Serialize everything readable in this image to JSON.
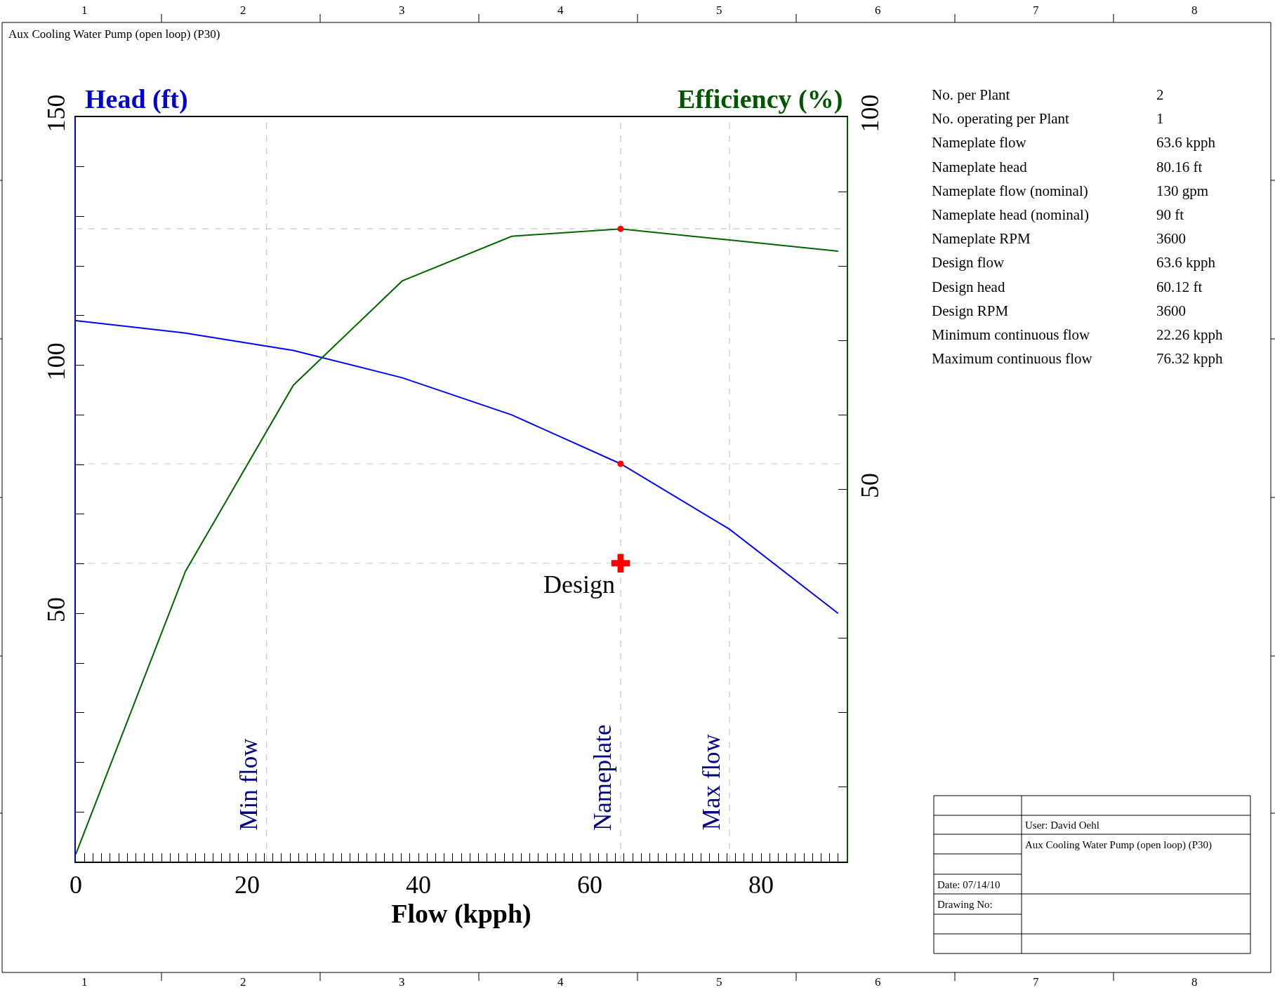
{
  "chart_data": {
    "type": "line",
    "title": "Aux Cooling Water Pump (open loop) (P30)",
    "xlabel": "Flow (kpph)",
    "ylabel": "Head (ft)",
    "y2label": "Efficiency (%)",
    "xlim": [
      0,
      90
    ],
    "ylim": [
      0,
      150
    ],
    "y2lim": [
      0,
      100
    ],
    "xticks": [
      0,
      {
        "value": 1,
        "label": null
      },
      {
        "value": 2,
        "label": null
      },
      {
        "value": 3,
        "label": null
      },
      {
        "value": 4,
        "label": null
      },
      {
        "value": 5,
        "label": null
      },
      {
        "value": 6,
        "label": null
      },
      {
        "value": 7,
        "label": null
      },
      {
        "value": 8,
        "label": null
      },
      {
        "value": 9,
        "label": null
      },
      {
        "value": 10,
        "label": null
      },
      {
        "value": 11,
        "label": null
      },
      {
        "value": 12,
        "label": null
      },
      {
        "value": 13,
        "label": null
      },
      {
        "value": 14,
        "label": null
      },
      {
        "value": 15,
        "label": null
      },
      {
        "value": 16,
        "label": null
      },
      {
        "value": 17,
        "label": null
      },
      {
        "value": 18,
        "label": null
      },
      {
        "value": 19,
        "label": null
      },
      20,
      {
        "value": 21,
        "label": null
      },
      {
        "value": 22,
        "label": null
      },
      {
        "value": 23,
        "label": null
      },
      {
        "value": 24,
        "label": null
      },
      {
        "value": 25,
        "label": null
      },
      {
        "value": 26,
        "label": null
      },
      {
        "value": 27,
        "label": null
      },
      {
        "value": 28,
        "label": null
      },
      {
        "value": 29,
        "label": null
      },
      {
        "value": 30,
        "label": null
      },
      {
        "value": 31,
        "label": null
      },
      {
        "value": 32,
        "label": null
      },
      {
        "value": 33,
        "label": null
      },
      {
        "value": 34,
        "label": null
      },
      {
        "value": 35,
        "label": null
      },
      {
        "value": 36,
        "label": null
      },
      {
        "value": 37,
        "label": null
      },
      {
        "value": 38,
        "label": null
      },
      {
        "value": 39,
        "label": null
      },
      40,
      {
        "value": 41,
        "label": null
      },
      {
        "value": 42,
        "label": null
      },
      {
        "value": 43,
        "label": null
      },
      {
        "value": 44,
        "label": null
      },
      {
        "value": 45,
        "label": null
      },
      {
        "value": 46,
        "label": null
      },
      {
        "value": 47,
        "label": null
      },
      {
        "value": 48,
        "label": null
      },
      {
        "value": 49,
        "label": null
      },
      {
        "value": 50,
        "label": null
      },
      {
        "value": 51,
        "label": null
      },
      {
        "value": 52,
        "label": null
      },
      {
        "value": 53,
        "label": null
      },
      {
        "value": 54,
        "label": null
      },
      {
        "value": 55,
        "label": null
      },
      {
        "value": 56,
        "label": null
      },
      {
        "value": 57,
        "label": null
      },
      {
        "value": 58,
        "label": null
      },
      {
        "value": 59,
        "label": null
      },
      60,
      {
        "value": 61,
        "label": null
      },
      {
        "value": 62,
        "label": null
      },
      {
        "value": 63,
        "label": null
      },
      {
        "value": 64,
        "label": null
      },
      {
        "value": 65,
        "label": null
      },
      {
        "value": 66,
        "label": null
      },
      {
        "value": 67,
        "label": null
      },
      {
        "value": 68,
        "label": null
      },
      {
        "value": 69,
        "label": null
      },
      {
        "value": 70,
        "label": null
      },
      {
        "value": 71,
        "label": null
      },
      {
        "value": 72,
        "label": null
      },
      {
        "value": 73,
        "label": null
      },
      {
        "value": 74,
        "label": null
      },
      {
        "value": 75,
        "label": null
      },
      {
        "value": 76,
        "label": null
      },
      {
        "value": 77,
        "label": null
      },
      {
        "value": 78,
        "label": null
      },
      {
        "value": 79,
        "label": null
      },
      80,
      {
        "value": 81,
        "label": null
      },
      {
        "value": 82,
        "label": null
      },
      {
        "value": 83,
        "label": null
      },
      {
        "value": 84,
        "label": null
      },
      {
        "value": 85,
        "label": null
      },
      {
        "value": 86,
        "label": null
      },
      {
        "value": 87,
        "label": null
      },
      {
        "value": 88,
        "label": null
      },
      {
        "value": 89,
        "label": null
      }
    ],
    "yticks": [
      {
        "value": 10,
        "label": null
      },
      {
        "value": 20,
        "label": null
      },
      {
        "value": 30,
        "label": null
      },
      {
        "value": 40,
        "label": null
      },
      50,
      {
        "value": 60,
        "label": null
      },
      {
        "value": 70,
        "label": null
      },
      {
        "value": 80,
        "label": null
      },
      {
        "value": 90,
        "label": null
      },
      100,
      {
        "value": 110,
        "label": null
      },
      {
        "value": 120,
        "label": null
      },
      {
        "value": 130,
        "label": null
      },
      {
        "value": 140,
        "label": null
      },
      150
    ],
    "y2ticks": [
      {
        "value": 10,
        "label": null
      },
      {
        "value": 20,
        "label": null
      },
      {
        "value": 30,
        "label": null
      },
      {
        "value": 40,
        "label": null
      },
      50,
      {
        "value": 60,
        "label": null
      },
      {
        "value": 70,
        "label": null
      },
      {
        "value": 80,
        "label": null
      },
      {
        "value": 90,
        "label": null
      },
      100
    ],
    "grid": false,
    "series": [
      {
        "color": "#0000ff",
        "x": [
          0,
          12.8,
          25.4,
          38.1,
          50.9,
          63.6,
          76.3,
          89
        ],
        "values": [
          109,
          106.5,
          103,
          97.5,
          90,
          80.16,
          67,
          50
        ]
      },
      {
        "axis": "y2",
        "color": "#006400",
        "x": [
          0,
          12.8,
          25.4,
          38.1,
          50.9,
          63.6,
          76.3,
          89
        ],
        "values": [
          1,
          39,
          64,
          78,
          84,
          85,
          83.5,
          82
        ]
      },
      {
        "type": "scatter",
        "marker": "circle",
        "color": "#ff0000",
        "x": [
          63.6
        ],
        "values": [
          80.16
        ]
      },
      {
        "type": "scatter",
        "axis": "y2",
        "marker": "circle",
        "color": "#ff0000",
        "x": [
          63.6
        ],
        "values": [
          85
        ]
      },
      {
        "type": "scatter",
        "marker": "cross",
        "color": "#ff0000",
        "x": [
          63.6
        ],
        "values": [
          60.12
        ]
      }
    ],
    "ref_lines": [
      {
        "axis": "x",
        "value": 22.26,
        "label": "Min flow",
        "color": "#c8c8c8",
        "line_style": "dashed"
      },
      {
        "axis": "x",
        "value": 63.6,
        "label": "Nameplate",
        "color": "#c8c8c8",
        "line_style": "dashed"
      },
      {
        "axis": "x",
        "value": 76.32,
        "label": "Max flow",
        "color": "#c8c8c8",
        "line_style": "dashed"
      },
      {
        "axis": "y",
        "value": 80.16,
        "color": "#c8c8c8",
        "line_style": "dashed"
      },
      {
        "axis": "y",
        "value": 60.12,
        "color": "#c8c8c8",
        "line_style": "dashed"
      },
      {
        "axis": "y2",
        "value": 85,
        "color": "#c8c8c8",
        "line_style": "dashed"
      }
    ],
    "annotations": [
      {
        "text": "Design",
        "x": 63.6,
        "y": 60.12
      },
      "No. per Plant",
      "2",
      "No. operating per Plant",
      "1",
      "Nameplate flow",
      "63.6 kpph",
      "Nameplate head",
      "80.16 ft",
      "Nameplate flow (nominal)",
      "130 gpm",
      "Nameplate head (nominal)",
      "90 ft",
      "Nameplate RPM",
      "3600",
      "Design flow",
      "63.6 kpph",
      "Design head",
      "60.12 ft",
      "Design RPM",
      "3600",
      "Minimum continuous flow",
      "22.26 kpph",
      "Maximum continuous flow",
      "76.32 kpph",
      "User: David Oehl",
      "Aux Cooling Water Pump (open loop) (P30)",
      "Date: 07/14/10",
      "Drawing No:",
      "1",
      "2",
      "3",
      "4",
      "5",
      "6",
      "7",
      "8",
      "1",
      "2",
      "3",
      "4",
      "5",
      "6",
      "7",
      "8"
    ]
  }
}
